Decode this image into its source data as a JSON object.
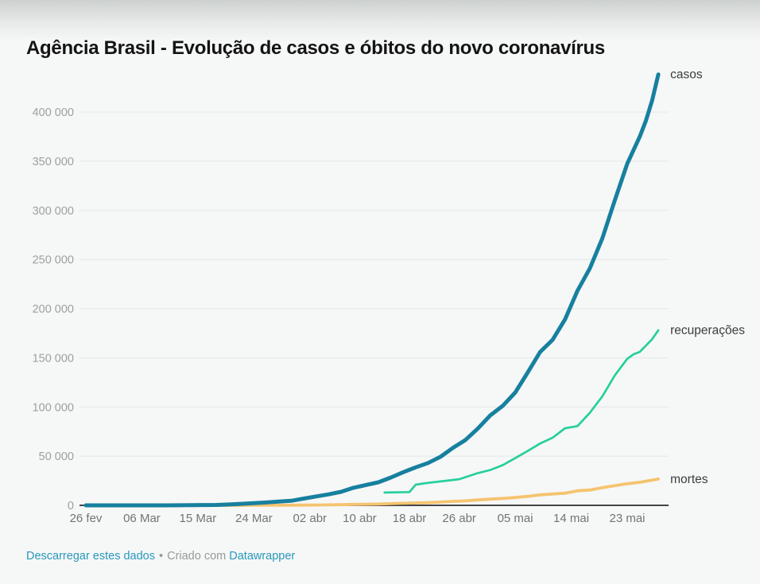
{
  "page": {
    "title": "Agência Brasil - Evolução de casos e óbitos do novo coronavírus"
  },
  "footer": {
    "download_link": "Descarregar estes dados",
    "separator": "•",
    "created_with": "Criado com",
    "datawrapper_link": "Datawrapper"
  },
  "colors": {
    "title": "#141414",
    "casos": "#17809f",
    "recuperacoes": "#25d09c",
    "mortes": "#f5c46f",
    "grid": "#e5e7e8",
    "baseline": "#2b2b30",
    "y_tick_label": "#9da0a2",
    "x_tick_label": "#717476",
    "series_label": "#3a3c3e",
    "link": "#2898ba",
    "footer_text": "#97999b"
  },
  "chart_data": {
    "type": "line",
    "title": "Agência Brasil - Evolução de casos e óbitos do novo coronavírus",
    "xlabel": "",
    "ylabel": "",
    "grid": "horizontal-only",
    "legend_position": "line-end-labels",
    "x_unit": "days since 26 fev",
    "x_range_days": [
      0,
      92
    ],
    "ylim": [
      0,
      443000
    ],
    "y_axis": {
      "ticks": [
        {
          "value": 0,
          "label": "0"
        },
        {
          "value": 50000,
          "label": "50 000"
        },
        {
          "value": 100000,
          "label": "100 000"
        },
        {
          "value": 150000,
          "label": "150 000"
        },
        {
          "value": 200000,
          "label": "200 000"
        },
        {
          "value": 250000,
          "label": "250 000"
        },
        {
          "value": 300000,
          "label": "300 000"
        },
        {
          "value": 350000,
          "label": "350 000"
        },
        {
          "value": 400000,
          "label": "400 000"
        }
      ]
    },
    "x_axis": {
      "ticks": [
        {
          "day": 0,
          "label": "26 fev"
        },
        {
          "day": 9,
          "label": "06 Mar"
        },
        {
          "day": 18,
          "label": "15 Mar"
        },
        {
          "day": 27,
          "label": "24 Mar"
        },
        {
          "day": 36,
          "label": "02 abr"
        },
        {
          "day": 44,
          "label": "10 abr"
        },
        {
          "day": 52,
          "label": "18 abr"
        },
        {
          "day": 60,
          "label": "26 abr"
        },
        {
          "day": 69,
          "label": "05 mai"
        },
        {
          "day": 78,
          "label": "14 mai"
        },
        {
          "day": 87,
          "label": "23 mai"
        }
      ]
    },
    "series": [
      {
        "id": "mortes",
        "label": "mortes",
        "color": "#f5c46f",
        "stroke_width": 3.8,
        "points": [
          [
            20,
            1
          ],
          [
            24,
            25
          ],
          [
            27,
            46
          ],
          [
            29,
            77
          ],
          [
            31,
            114
          ],
          [
            33,
            159
          ],
          [
            35,
            240
          ],
          [
            37,
            359
          ],
          [
            39,
            486
          ],
          [
            41,
            667
          ],
          [
            43,
            941
          ],
          [
            45,
            1124
          ],
          [
            47,
            1328
          ],
          [
            49,
            1736
          ],
          [
            51,
            2141
          ],
          [
            53,
            2462
          ],
          [
            55,
            2741
          ],
          [
            57,
            3313
          ],
          [
            59,
            4016
          ],
          [
            61,
            4543
          ],
          [
            63,
            5466
          ],
          [
            65,
            6329
          ],
          [
            67,
            7025
          ],
          [
            69,
            7921
          ],
          [
            71,
            9146
          ],
          [
            73,
            10627
          ],
          [
            75,
            11519
          ],
          [
            77,
            12400
          ],
          [
            79,
            14817
          ],
          [
            81,
            15633
          ],
          [
            83,
            17971
          ],
          [
            85,
            20047
          ],
          [
            87,
            22013
          ],
          [
            89,
            23473
          ],
          [
            91,
            25598
          ],
          [
            92,
            26754
          ]
        ]
      },
      {
        "id": "recuperacoes",
        "label": "recuperações",
        "color": "#25d09c",
        "stroke_width": 2.7,
        "points": [
          [
            48,
            13000
          ],
          [
            52,
            13500
          ],
          [
            53,
            21000
          ],
          [
            55,
            22900
          ],
          [
            57,
            24300
          ],
          [
            60,
            26600
          ],
          [
            63,
            32800
          ],
          [
            65,
            36000
          ],
          [
            67,
            40900
          ],
          [
            69,
            48000
          ],
          [
            71,
            55300
          ],
          [
            73,
            62900
          ],
          [
            75,
            68800
          ],
          [
            77,
            78400
          ],
          [
            79,
            80600
          ],
          [
            81,
            94200
          ],
          [
            83,
            110900
          ],
          [
            85,
            132000
          ],
          [
            87,
            149000
          ],
          [
            88,
            153500
          ],
          [
            89,
            156000
          ],
          [
            91,
            169000
          ],
          [
            92,
            178000
          ]
        ]
      },
      {
        "id": "casos",
        "label": "casos",
        "color": "#17809f",
        "stroke_width": 5,
        "points": [
          [
            0,
            1
          ],
          [
            5,
            2
          ],
          [
            9,
            13
          ],
          [
            13,
            34
          ],
          [
            17,
            151
          ],
          [
            19,
            291
          ],
          [
            21,
            428
          ],
          [
            23,
            904
          ],
          [
            25,
            1546
          ],
          [
            27,
            2201
          ],
          [
            29,
            2915
          ],
          [
            31,
            3904
          ],
          [
            33,
            4579
          ],
          [
            35,
            6836
          ],
          [
            37,
            9056
          ],
          [
            39,
            11130
          ],
          [
            41,
            13717
          ],
          [
            43,
            17857
          ],
          [
            45,
            20727
          ],
          [
            47,
            23430
          ],
          [
            49,
            28320
          ],
          [
            51,
            33682
          ],
          [
            53,
            38654
          ],
          [
            55,
            43079
          ],
          [
            57,
            49492
          ],
          [
            59,
            58509
          ],
          [
            61,
            66501
          ],
          [
            63,
            78162
          ],
          [
            65,
            91589
          ],
          [
            67,
            101147
          ],
          [
            69,
            114715
          ],
          [
            71,
            135106
          ],
          [
            73,
            155939
          ],
          [
            75,
            168331
          ],
          [
            77,
            188974
          ],
          [
            79,
            218223
          ],
          [
            81,
            241080
          ],
          [
            83,
            271628
          ],
          [
            85,
            310087
          ],
          [
            87,
            347398
          ],
          [
            89,
            374898
          ],
          [
            90,
            391222
          ],
          [
            91,
            411821
          ],
          [
            92,
            438238
          ]
        ]
      }
    ]
  }
}
